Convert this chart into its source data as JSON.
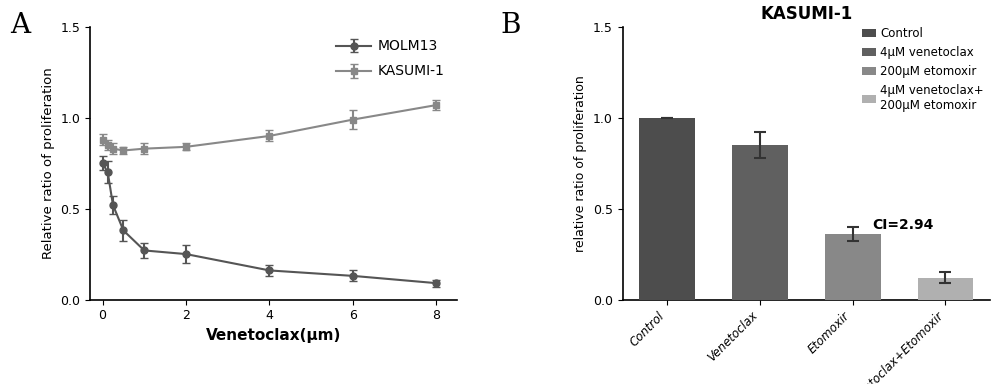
{
  "panel_A": {
    "label": "A",
    "molm13": {
      "x": [
        0,
        0.125,
        0.25,
        0.5,
        1,
        2,
        4,
        6,
        8
      ],
      "y": [
        0.75,
        0.7,
        0.52,
        0.38,
        0.27,
        0.25,
        0.16,
        0.13,
        0.09
      ],
      "yerr": [
        0.04,
        0.06,
        0.05,
        0.06,
        0.04,
        0.05,
        0.03,
        0.03,
        0.02
      ],
      "color": "#555555",
      "marker": "o",
      "label": "MOLM13"
    },
    "kasumi1": {
      "x": [
        0,
        0.125,
        0.25,
        0.5,
        1,
        2,
        4,
        6,
        8
      ],
      "y": [
        0.88,
        0.85,
        0.83,
        0.82,
        0.83,
        0.84,
        0.9,
        0.99,
        1.07
      ],
      "yerr": [
        0.03,
        0.03,
        0.03,
        0.02,
        0.03,
        0.02,
        0.03,
        0.05,
        0.03
      ],
      "color": "#888888",
      "marker": "s",
      "label": "KASUMI-1"
    },
    "xlabel": "Venetoclax(μm)",
    "ylabel": "Relative ratio of proliferation",
    "ylim": [
      0.0,
      1.5
    ],
    "yticks": [
      0.0,
      0.5,
      1.0,
      1.5
    ],
    "xticks": [
      0,
      2,
      4,
      6,
      8
    ],
    "xlim": [
      -0.3,
      8.5
    ]
  },
  "panel_B": {
    "label": "B",
    "title": "KASUMI-1",
    "categories": [
      "Control",
      "Venetoclax",
      "Etomoxir",
      "Venetoclax+Etomoxir"
    ],
    "values": [
      1.0,
      0.85,
      0.36,
      0.12
    ],
    "yerr": [
      0.0,
      0.07,
      0.04,
      0.03
    ],
    "bar_colors": [
      "#4d4d4d",
      "#606060",
      "#888888",
      "#b0b0b0"
    ],
    "ylabel": "relative ratio of proliferation",
    "ylim": [
      0.0,
      1.5
    ],
    "yticks": [
      0.0,
      0.5,
      1.0,
      1.5
    ],
    "legend_labels": [
      "Control",
      "4μM venetoclax",
      "200μM etomoxir",
      "4μM venetoclax+\n200μM etomoxir"
    ],
    "legend_colors": [
      "#4d4d4d",
      "#606060",
      "#888888",
      "#b0b0b0"
    ],
    "ci_text": "CI=2.94"
  }
}
